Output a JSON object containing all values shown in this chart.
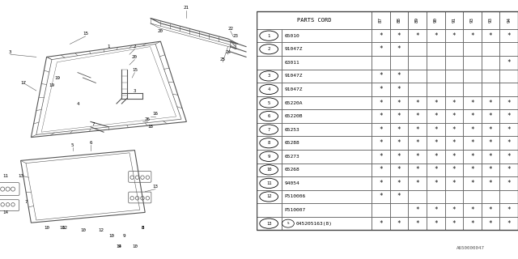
{
  "bg_color": "#ffffff",
  "header_col": "PARTS CORD",
  "year_cols": [
    "87",
    "88",
    "89",
    "90",
    "91",
    "93",
    "93",
    "94"
  ],
  "rows": [
    {
      "num": "1",
      "part": "65010",
      "marks": [
        1,
        1,
        1,
        1,
        1,
        1,
        1,
        1
      ],
      "show_num": true
    },
    {
      "num": "2",
      "part": "91047Z",
      "marks": [
        1,
        1,
        0,
        0,
        0,
        0,
        0,
        0
      ],
      "show_num": true
    },
    {
      "num": "2",
      "part": "63011",
      "marks": [
        0,
        0,
        0,
        0,
        0,
        0,
        0,
        1
      ],
      "show_num": false
    },
    {
      "num": "3",
      "part": "91047Z",
      "marks": [
        1,
        1,
        0,
        0,
        0,
        0,
        0,
        0
      ],
      "show_num": true
    },
    {
      "num": "4",
      "part": "91047Z",
      "marks": [
        1,
        1,
        0,
        0,
        0,
        0,
        0,
        0
      ],
      "show_num": true
    },
    {
      "num": "5",
      "part": "65220A",
      "marks": [
        1,
        1,
        1,
        1,
        1,
        1,
        1,
        1
      ],
      "show_num": true
    },
    {
      "num": "6",
      "part": "65220B",
      "marks": [
        1,
        1,
        1,
        1,
        1,
        1,
        1,
        1
      ],
      "show_num": true
    },
    {
      "num": "7",
      "part": "65253",
      "marks": [
        1,
        1,
        1,
        1,
        1,
        1,
        1,
        1
      ],
      "show_num": true
    },
    {
      "num": "8",
      "part": "65288",
      "marks": [
        1,
        1,
        1,
        1,
        1,
        1,
        1,
        1
      ],
      "show_num": true
    },
    {
      "num": "9",
      "part": "65273",
      "marks": [
        1,
        1,
        1,
        1,
        1,
        1,
        1,
        1
      ],
      "show_num": true
    },
    {
      "num": "10",
      "part": "65268",
      "marks": [
        1,
        1,
        1,
        1,
        1,
        1,
        1,
        1
      ],
      "show_num": true
    },
    {
      "num": "11",
      "part": "94054",
      "marks": [
        1,
        1,
        1,
        1,
        1,
        1,
        1,
        1
      ],
      "show_num": true
    },
    {
      "num": "12",
      "part": "P510006",
      "marks": [
        1,
        1,
        0,
        0,
        0,
        0,
        0,
        0
      ],
      "show_num": true
    },
    {
      "num": "12",
      "part": "P510007",
      "marks": [
        0,
        0,
        1,
        1,
        1,
        1,
        1,
        1
      ],
      "show_num": false
    },
    {
      "num": "13",
      "part": "045205163(8)",
      "marks": [
        1,
        1,
        1,
        1,
        1,
        1,
        1,
        1
      ],
      "show_num": true
    }
  ],
  "footer": "A650000047",
  "lc": "#999999",
  "tc": "#000000",
  "lc2": "#555555"
}
